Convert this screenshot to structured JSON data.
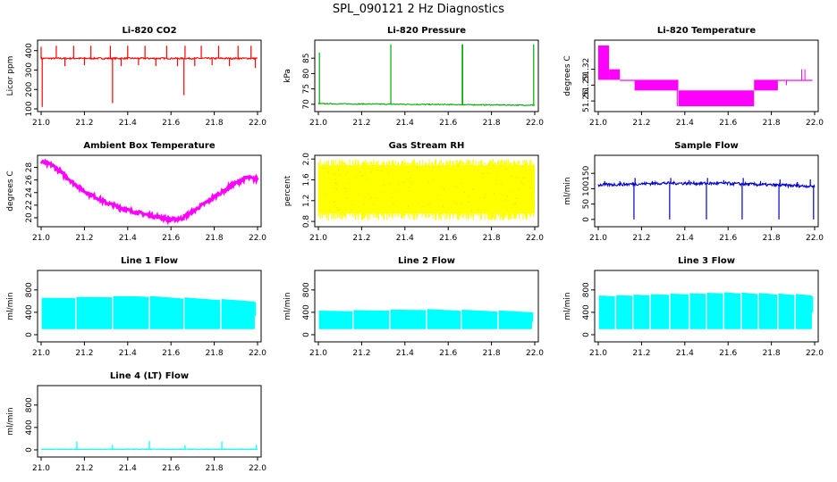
{
  "figure": {
    "title": "SPL_090121  2 Hz Diagnostics"
  },
  "chart_data": [
    {
      "id": "co2",
      "type": "line",
      "title": "Li-820 CO2",
      "ylabel": "Licor ppm",
      "color": "#ff0000",
      "xlim": [
        21.0,
        22.0
      ],
      "ylim": [
        100,
        440
      ],
      "xticks": [
        "21.0",
        "21.2",
        "21.4",
        "21.6",
        "21.8",
        "22.0"
      ],
      "yticks": [
        "100",
        "200",
        "300",
        "400"
      ],
      "baseline": 360,
      "noise": 4,
      "mode": "line",
      "spikes": [
        {
          "x": 21.005,
          "y": 110
        },
        {
          "x": 21.0,
          "y": 420
        },
        {
          "x": 21.07,
          "y": 425
        },
        {
          "x": 21.15,
          "y": 425
        },
        {
          "x": 21.23,
          "y": 425
        },
        {
          "x": 21.33,
          "y": 130
        },
        {
          "x": 21.32,
          "y": 425
        },
        {
          "x": 21.4,
          "y": 425
        },
        {
          "x": 21.48,
          "y": 425
        },
        {
          "x": 21.58,
          "y": 425
        },
        {
          "x": 21.66,
          "y": 170
        },
        {
          "x": 21.665,
          "y": 425
        },
        {
          "x": 21.74,
          "y": 425
        },
        {
          "x": 21.82,
          "y": 425
        },
        {
          "x": 21.91,
          "y": 425
        },
        {
          "x": 21.97,
          "y": 425
        },
        {
          "x": 21.99,
          "y": 310
        },
        {
          "x": 21.11,
          "y": 320
        },
        {
          "x": 21.2,
          "y": 325
        },
        {
          "x": 21.37,
          "y": 320
        },
        {
          "x": 21.45,
          "y": 325
        },
        {
          "x": 21.53,
          "y": 320
        },
        {
          "x": 21.63,
          "y": 320
        },
        {
          "x": 21.71,
          "y": 320
        },
        {
          "x": 21.79,
          "y": 325
        },
        {
          "x": 21.87,
          "y": 320
        }
      ]
    },
    {
      "id": "pressure",
      "type": "line",
      "title": "Li-820 Pressure",
      "ylabel": "kPa",
      "color": "#00aa00",
      "xlim": [
        21.0,
        22.0
      ],
      "ylim": [
        68.5,
        90
      ],
      "xticks": [
        "21.0",
        "21.2",
        "21.4",
        "21.6",
        "21.8",
        "22.0"
      ],
      "yticks": [
        "70",
        "75",
        "80",
        "85"
      ],
      "trend": [
        [
          21.0,
          70.2
        ],
        [
          22.0,
          69.7
        ]
      ],
      "noise": 0.15,
      "mode": "line",
      "spikes": [
        {
          "x": 21.005,
          "y": 86.8
        },
        {
          "x": 21.335,
          "y": 89.5
        },
        {
          "x": 21.665,
          "y": 89.5
        },
        {
          "x": 21.667,
          "y": 89.5
        },
        {
          "x": 21.995,
          "y": 89.5
        }
      ]
    },
    {
      "id": "temp",
      "type": "area",
      "title": "Li-820 Temperature",
      "ylabel": "degrees C",
      "color": "#ff00ff",
      "xlim": [
        21.0,
        22.0
      ],
      "ylim": [
        51.245,
        51.37
      ],
      "xticks": [
        "21.0",
        "21.2",
        "21.4",
        "21.6",
        "21.8",
        "22.0"
      ],
      "yticks": [
        "51.26",
        "51.29",
        "51.32"
      ],
      "tick_values": [
        51.26,
        51.29,
        51.32
      ],
      "bands": [
        {
          "x0": 21.0,
          "x1": 21.05,
          "lo": 51.3,
          "hi": 51.365
        },
        {
          "x0": 21.05,
          "x1": 21.1,
          "lo": 51.3,
          "hi": 51.32
        },
        {
          "x0": 21.1,
          "x1": 21.17,
          "lo": 51.3,
          "hi": 51.3
        },
        {
          "x0": 21.17,
          "x1": 21.37,
          "lo": 51.28,
          "hi": 51.3
        },
        {
          "x0": 21.37,
          "x1": 21.72,
          "lo": 51.25,
          "hi": 51.28
        },
        {
          "x0": 21.72,
          "x1": 21.83,
          "lo": 51.28,
          "hi": 51.3
        },
        {
          "x0": 21.83,
          "x1": 21.99,
          "lo": 51.3,
          "hi": 51.3
        }
      ],
      "spikes": [
        {
          "x": 21.94,
          "y": 51.32
        },
        {
          "x": 21.955,
          "y": 51.32
        },
        {
          "x": 21.365,
          "y": 51.25
        },
        {
          "x": 21.17,
          "y": 51.28
        },
        {
          "x": 21.87,
          "y": 51.29
        }
      ]
    },
    {
      "id": "ambient",
      "type": "line",
      "title": "Ambient Box Temperature",
      "ylabel": "degrees C",
      "color": "#ff00ff",
      "xlim": [
        21.0,
        22.0
      ],
      "ylim": [
        19,
        29.5
      ],
      "xticks": [
        "21.0",
        "21.2",
        "21.4",
        "21.6",
        "21.8",
        "22.0"
      ],
      "yticks": [
        "20",
        "22",
        "24",
        "26",
        "28"
      ],
      "curve": [
        [
          21.0,
          28.9
        ],
        [
          21.05,
          28.4
        ],
        [
          21.1,
          27.0
        ],
        [
          21.15,
          25.5
        ],
        [
          21.2,
          24.2
        ],
        [
          21.3,
          22.4
        ],
        [
          21.4,
          21.2
        ],
        [
          21.5,
          20.4
        ],
        [
          21.6,
          19.7
        ],
        [
          21.65,
          19.9
        ],
        [
          21.7,
          21.0
        ],
        [
          21.8,
          23.3
        ],
        [
          21.9,
          25.5
        ],
        [
          21.95,
          26.4
        ],
        [
          22.0,
          26.1
        ]
      ],
      "noise": 0.25,
      "mode": "thick"
    },
    {
      "id": "rh",
      "type": "area",
      "title": "Gas Stream RH",
      "ylabel": "percent",
      "color": "#ffff00",
      "xlim": [
        21.0,
        22.0
      ],
      "ylim": [
        0.75,
        2.02
      ],
      "xticks": [
        "21.0",
        "21.2",
        "21.4",
        "21.6",
        "21.8",
        "22.0"
      ],
      "yticks": [
        "0.8",
        "1.2",
        "1.6",
        "2.0"
      ],
      "tick_values": [
        0.8,
        1.2,
        1.6,
        2.0
      ],
      "band": {
        "lo": 0.95,
        "hi": 1.88,
        "dense_lo": 1.2,
        "dense_hi": 1.8,
        "max": 2.0,
        "min": 0.82
      }
    },
    {
      "id": "sample",
      "type": "line",
      "title": "Sample Flow",
      "ylabel": "ml/min",
      "color": "#0000cc",
      "xlim": [
        21.0,
        22.0
      ],
      "ylim": [
        -15,
        200
      ],
      "xticks": [
        "21.0",
        "21.2",
        "21.4",
        "21.6",
        "21.8",
        "22.0"
      ],
      "yticks": [
        "0",
        "50",
        "100",
        "150"
      ],
      "tick_values": [
        0,
        50,
        100,
        150
      ],
      "curve": [
        [
          21.0,
          112
        ],
        [
          21.3,
          118
        ],
        [
          21.6,
          117
        ],
        [
          21.8,
          112
        ],
        [
          22.0,
          108
        ]
      ],
      "noise": 5,
      "mode": "line",
      "spikes": [
        {
          "x": 21.165,
          "y": 0
        },
        {
          "x": 21.33,
          "y": 0
        },
        {
          "x": 21.5,
          "y": 0
        },
        {
          "x": 21.665,
          "y": 0
        },
        {
          "x": 21.835,
          "y": 0
        },
        {
          "x": 21.995,
          "y": 0
        },
        {
          "x": 21.17,
          "y": 135
        },
        {
          "x": 21.335,
          "y": 135
        },
        {
          "x": 21.505,
          "y": 135
        },
        {
          "x": 21.67,
          "y": 135
        },
        {
          "x": 21.84,
          "y": 130
        },
        {
          "x": 21.98,
          "y": 130
        },
        {
          "x": 21.03,
          "y": 125
        },
        {
          "x": 21.1,
          "y": 125
        },
        {
          "x": 21.25,
          "y": 125
        },
        {
          "x": 21.42,
          "y": 128
        },
        {
          "x": 21.58,
          "y": 128
        },
        {
          "x": 21.75,
          "y": 125
        },
        {
          "x": 21.92,
          "y": 122
        }
      ]
    },
    {
      "id": "line1",
      "type": "area",
      "title": "Line 1 Flow",
      "ylabel": "ml/min",
      "color": "#00ffff",
      "xlim": [
        21.0,
        22.0
      ],
      "ylim": [
        -80,
        1100
      ],
      "xticks": [
        "21.0",
        "21.2",
        "21.4",
        "21.6",
        "21.8",
        "22.0"
      ],
      "yticks": [
        "0",
        "400",
        "800"
      ],
      "tick_values": [
        0,
        400,
        800
      ],
      "fill": {
        "lo": 100,
        "hi_start": 660,
        "hi_mid": 700,
        "hi_end": 610,
        "peak_x": 21.45
      },
      "gaps": [
        21.16,
        21.33,
        21.5,
        21.66,
        21.83
      ]
    },
    {
      "id": "line2",
      "type": "area",
      "title": "Line 2 Flow",
      "ylabel": "ml/min",
      "color": "#00ffff",
      "xlim": [
        21.0,
        22.0
      ],
      "ylim": [
        -80,
        1100
      ],
      "xticks": [
        "21.0",
        "21.2",
        "21.4",
        "21.6",
        "21.8",
        "22.0"
      ],
      "yticks": [
        "0",
        "400",
        "800"
      ],
      "tick_values": [
        0,
        400,
        800
      ],
      "fill": {
        "lo": 100,
        "hi_start": 430,
        "hi_mid": 460,
        "hi_end": 420,
        "peak_x": 21.5
      },
      "gaps": [
        21.16,
        21.33,
        21.5,
        21.66,
        21.83
      ]
    },
    {
      "id": "line3",
      "type": "area",
      "title": "Line 3 Flow",
      "ylabel": "ml/min",
      "color": "#00ffff",
      "xlim": [
        21.0,
        22.0
      ],
      "ylim": [
        -80,
        1100
      ],
      "xticks": [
        "21.0",
        "21.2",
        "21.4",
        "21.6",
        "21.8",
        "22.0"
      ],
      "yticks": [
        "0",
        "400",
        "800"
      ],
      "tick_values": [
        0,
        400,
        800
      ],
      "fill": {
        "lo": 100,
        "hi_start": 700,
        "hi_mid": 760,
        "hi_end": 720,
        "peak_x": 21.6
      },
      "gaps": [
        21.08,
        21.16,
        21.24,
        21.33,
        21.42,
        21.5,
        21.58,
        21.66,
        21.74,
        21.83,
        21.91
      ]
    },
    {
      "id": "line4",
      "type": "line",
      "title": "Line 4 (LT) Flow",
      "ylabel": "ml/min",
      "color": "#00ffff",
      "xlim": [
        21.0,
        22.0
      ],
      "ylim": [
        -80,
        1100
      ],
      "xticks": [
        "21.0",
        "21.2",
        "21.4",
        "21.6",
        "21.8",
        "22.0"
      ],
      "yticks": [
        "0",
        "400",
        "800"
      ],
      "tick_values": [
        0,
        400,
        800
      ],
      "curve": [
        [
          21.0,
          10
        ],
        [
          22.0,
          10
        ]
      ],
      "noise": 6,
      "mode": "line",
      "spikes": [
        {
          "x": 21.165,
          "y": 150
        },
        {
          "x": 21.33,
          "y": 90
        },
        {
          "x": 21.5,
          "y": 160
        },
        {
          "x": 21.665,
          "y": 80
        },
        {
          "x": 21.835,
          "y": 150
        },
        {
          "x": 21.995,
          "y": 90
        }
      ]
    }
  ]
}
